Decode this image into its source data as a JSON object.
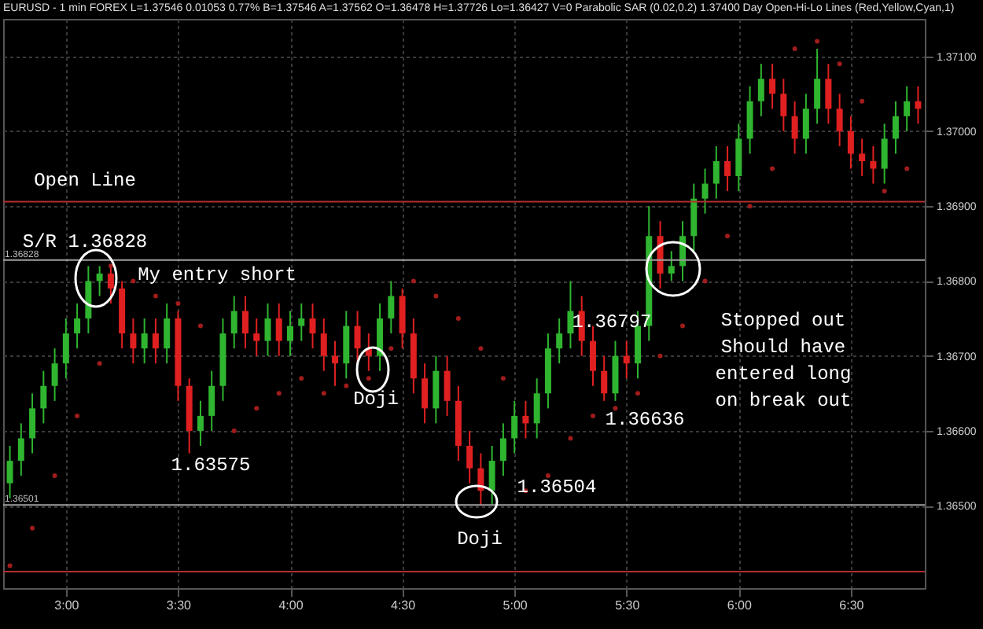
{
  "chart_data": {
    "type": "candlestick",
    "title": "EURUSD - 1 min  FOREX  L=1.37546  0.01053  0.77%  B=1.37546  A=1.37562  O=1.36478  H=1.37726  Lo=1.36427  V=0  Parabolic SAR (0.02,0.2)  1.37400  Day Open-Hi-Lo Lines (Red,Yellow,Cyan,1)",
    "x": [
      2.75,
      2.8,
      2.85,
      2.9,
      2.95,
      3,
      3.05,
      3.1,
      3.15,
      3.2,
      3.25,
      3.3,
      3.35,
      3.4,
      3.45,
      3.5,
      3.55,
      3.6,
      3.65,
      3.7,
      3.75,
      3.8,
      3.85,
      3.9,
      3.95,
      4,
      4.05,
      4.1,
      4.15,
      4.2,
      4.25,
      4.3,
      4.35,
      4.4,
      4.45,
      4.5,
      4.55,
      4.6,
      4.65,
      4.7,
      4.75,
      4.8,
      4.85,
      4.9,
      4.95,
      5,
      5.05,
      5.1,
      5.15,
      5.2,
      5.25,
      5.3,
      5.35,
      5.4,
      5.45,
      5.5,
      5.55,
      5.6,
      5.65,
      5.7,
      5.75,
      5.8,
      5.85,
      5.9,
      5.95,
      6,
      6.05,
      6.1,
      6.15,
      6.2,
      6.25,
      6.3,
      6.35,
      6.4,
      6.45,
      6.5,
      6.55,
      6.6,
      6.65,
      6.7,
      6.75,
      6.8
    ],
    "ohlc": [
      [
        1.3653,
        1.3658,
        1.3651,
        1.3656
      ],
      [
        1.3656,
        1.3661,
        1.3654,
        1.3659
      ],
      [
        1.3659,
        1.3665,
        1.3657,
        1.3663
      ],
      [
        1.3663,
        1.3668,
        1.3661,
        1.3666
      ],
      [
        1.3666,
        1.3671,
        1.3664,
        1.3669
      ],
      [
        1.3669,
        1.3675,
        1.3667,
        1.3673
      ],
      [
        1.3673,
        1.3677,
        1.3671,
        1.3675
      ],
      [
        1.3675,
        1.3682,
        1.3673,
        1.368
      ],
      [
        1.368,
        1.3682,
        1.3678,
        1.3681
      ],
      [
        1.3681,
        1.3682,
        1.3677,
        1.3679
      ],
      [
        1.3679,
        1.368,
        1.3671,
        1.3673
      ],
      [
        1.3673,
        1.3675,
        1.3669,
        1.3671
      ],
      [
        1.3671,
        1.3675,
        1.3669,
        1.3673
      ],
      [
        1.3673,
        1.3675,
        1.3669,
        1.3671
      ],
      [
        1.3671,
        1.3677,
        1.3669,
        1.3675
      ],
      [
        1.3675,
        1.3676,
        1.3664,
        1.3666
      ],
      [
        1.3666,
        1.3667,
        1.3657,
        1.366
      ],
      [
        1.366,
        1.3664,
        1.3658,
        1.3662
      ],
      [
        1.3662,
        1.3668,
        1.366,
        1.3666
      ],
      [
        1.3666,
        1.3675,
        1.3664,
        1.3673
      ],
      [
        1.3673,
        1.3678,
        1.3671,
        1.3676
      ],
      [
        1.3676,
        1.3678,
        1.3671,
        1.3673
      ],
      [
        1.3673,
        1.3675,
        1.367,
        1.3672
      ],
      [
        1.3672,
        1.3677,
        1.367,
        1.3675
      ],
      [
        1.3675,
        1.3677,
        1.367,
        1.3672
      ],
      [
        1.3672,
        1.3676,
        1.367,
        1.3674
      ],
      [
        1.3674,
        1.3677,
        1.3672,
        1.3675
      ],
      [
        1.3675,
        1.3677,
        1.3671,
        1.3673
      ],
      [
        1.3673,
        1.3675,
        1.3668,
        1.367
      ],
      [
        1.367,
        1.3672,
        1.3666,
        1.3669
      ],
      [
        1.3669,
        1.3676,
        1.3667,
        1.3674
      ],
      [
        1.3674,
        1.3676,
        1.3669,
        1.3671
      ],
      [
        1.3671,
        1.3673,
        1.3668,
        1.367
      ],
      [
        1.367,
        1.3677,
        1.3668,
        1.3675
      ],
      [
        1.3675,
        1.368,
        1.3673,
        1.3678
      ],
      [
        1.3678,
        1.3679,
        1.3671,
        1.3673
      ],
      [
        1.3673,
        1.3675,
        1.3665,
        1.3667
      ],
      [
        1.3667,
        1.3669,
        1.3661,
        1.3663
      ],
      [
        1.3663,
        1.367,
        1.3661,
        1.3668
      ],
      [
        1.3668,
        1.367,
        1.3662,
        1.3664
      ],
      [
        1.3664,
        1.3666,
        1.3656,
        1.3658
      ],
      [
        1.3658,
        1.366,
        1.3653,
        1.3655
      ],
      [
        1.3655,
        1.3657,
        1.365,
        1.3652
      ],
      [
        1.3652,
        1.3658,
        1.365,
        1.3656
      ],
      [
        1.3656,
        1.3661,
        1.3654,
        1.3659
      ],
      [
        1.3659,
        1.3664,
        1.3657,
        1.3662
      ],
      [
        1.3662,
        1.3664,
        1.3659,
        1.3661
      ],
      [
        1.3661,
        1.3667,
        1.3659,
        1.3665
      ],
      [
        1.3665,
        1.3673,
        1.3663,
        1.3671
      ],
      [
        1.3671,
        1.3675,
        1.3669,
        1.3673
      ],
      [
        1.3673,
        1.368,
        1.3671,
        1.3676
      ],
      [
        1.3676,
        1.3678,
        1.367,
        1.3672
      ],
      [
        1.3672,
        1.3674,
        1.3666,
        1.3668
      ],
      [
        1.3668,
        1.367,
        1.3664,
        1.3665
      ],
      [
        1.3665,
        1.3672,
        1.3664,
        1.367
      ],
      [
        1.367,
        1.3672,
        1.3667,
        1.3669
      ],
      [
        1.3669,
        1.3676,
        1.3667,
        1.3674
      ],
      [
        1.3674,
        1.369,
        1.3672,
        1.3686
      ],
      [
        1.3686,
        1.3688,
        1.3679,
        1.3681
      ],
      [
        1.3681,
        1.3684,
        1.368,
        1.3682
      ],
      [
        1.3682,
        1.3688,
        1.368,
        1.3686
      ],
      [
        1.3686,
        1.3693,
        1.3684,
        1.3691
      ],
      [
        1.3691,
        1.3695,
        1.3689,
        1.3693
      ],
      [
        1.3693,
        1.3698,
        1.3691,
        1.3696
      ],
      [
        1.3696,
        1.3698,
        1.3692,
        1.3694
      ],
      [
        1.3694,
        1.3701,
        1.3692,
        1.3699
      ],
      [
        1.3699,
        1.3706,
        1.3697,
        1.3704
      ],
      [
        1.3704,
        1.3709,
        1.3702,
        1.3707
      ],
      [
        1.3707,
        1.3709,
        1.3703,
        1.3705
      ],
      [
        1.3705,
        1.3707,
        1.37,
        1.3702
      ],
      [
        1.3702,
        1.3704,
        1.3697,
        1.3699
      ],
      [
        1.3699,
        1.3705,
        1.3697,
        1.3703
      ],
      [
        1.3703,
        1.3711,
        1.3701,
        1.3707
      ],
      [
        1.3707,
        1.3709,
        1.3701,
        1.3703
      ],
      [
        1.3703,
        1.3705,
        1.3698,
        1.37
      ],
      [
        1.37,
        1.3702,
        1.3695,
        1.3697
      ],
      [
        1.3697,
        1.3699,
        1.3694,
        1.3696
      ],
      [
        1.3696,
        1.3698,
        1.3693,
        1.3695
      ],
      [
        1.3695,
        1.3701,
        1.3693,
        1.3699
      ],
      [
        1.3699,
        1.3704,
        1.3697,
        1.3702
      ],
      [
        1.3702,
        1.3706,
        1.37,
        1.3704
      ],
      [
        1.3704,
        1.3706,
        1.3701,
        1.3703
      ]
    ],
    "series": [
      {
        "type": "scatter",
        "color": "#a01c1c",
        "x": [
          2.75,
          2.85,
          2.95,
          3.05,
          3.15,
          3.2,
          3.3,
          3.4,
          3.5,
          3.6,
          3.75,
          3.85,
          3.95,
          4.05,
          4.15,
          4.25,
          4.35,
          4.45,
          4.55,
          4.65,
          4.75,
          4.85,
          4.95,
          5.05,
          5.15,
          5.25,
          5.35,
          5.45,
          5.55,
          5.65,
          5.75,
          5.85,
          5.95,
          6.05,
          6.15,
          6.25,
          6.35,
          6.45,
          6.55,
          6.65,
          6.75
        ],
        "values": [
          1.3642,
          1.3647,
          1.3654,
          1.3662,
          1.3669,
          1.3682,
          1.368,
          1.3678,
          1.3677,
          1.3674,
          1.366,
          1.3663,
          1.3665,
          1.3667,
          1.3665,
          1.3666,
          1.3667,
          1.3671,
          1.368,
          1.3678,
          1.3675,
          1.3671,
          1.3667,
          1.3652,
          1.3654,
          1.3659,
          1.3662,
          1.3663,
          1.3665,
          1.367,
          1.3674,
          1.368,
          1.3686,
          1.369,
          1.3695,
          1.3711,
          1.3712,
          1.3709,
          1.3704,
          1.3692,
          1.3695
        ]
      }
    ],
    "marker": "circle",
    "xlim": [
      2.72,
      6.83
    ],
    "xticks": [
      {
        "value": 3,
        "label": "3:00"
      },
      {
        "value": 3.5,
        "label": "3:30"
      },
      {
        "value": 4,
        "label": "4:00"
      },
      {
        "value": 4.5,
        "label": "4:30"
      },
      {
        "value": 5,
        "label": "5:00"
      },
      {
        "value": 5.5,
        "label": "5:30"
      },
      {
        "value": 6,
        "label": "6:00"
      },
      {
        "value": 6.5,
        "label": "6:30"
      }
    ],
    "ylim": [
      1.3639,
      1.3715
    ],
    "yticks": [
      {
        "value": 1.365,
        "label": "1.36500"
      },
      {
        "value": 1.366,
        "label": "1.36600"
      },
      {
        "value": 1.367,
        "label": "1.36700"
      },
      {
        "value": 1.368,
        "label": "1.36800"
      },
      {
        "value": 1.369,
        "label": "1.36900"
      },
      {
        "value": 1.371,
        "label": "1.37100"
      },
      {
        "value": 1.37,
        "label": "1.37000"
      }
    ],
    "grid": true,
    "ref_lines": [
      {
        "axis": "y",
        "value": 1.36906,
        "color": "#b03030"
      },
      {
        "axis": "y",
        "value": 1.36828,
        "label": "1.36828",
        "color": "#a0a0a0"
      },
      {
        "axis": "y",
        "value": 1.36501,
        "label": "1.36501",
        "color": "#a0a0a0"
      },
      {
        "axis": "y",
        "value": 1.36412,
        "color": "#b03030"
      }
    ],
    "annotations": [
      "Open Line",
      "S/R 1.36828",
      "My entry short",
      "Doji",
      "1.63575",
      "Doji",
      "1.36504",
      "1.36797",
      "1.36636",
      "Stopped out\nShould have\nentered long\non break out"
    ]
  }
}
